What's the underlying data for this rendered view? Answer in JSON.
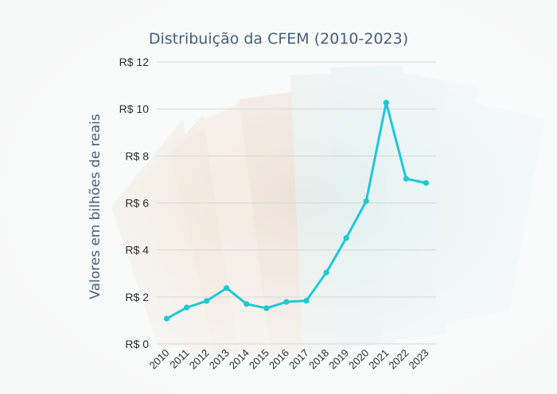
{
  "chart_data": {
    "type": "line",
    "title": "Distribuição da CFEM (2010-2023)",
    "xlabel": "",
    "ylabel": "Valores em bilhões de reais",
    "categories": [
      "2010",
      "2011",
      "2012",
      "2013",
      "2014",
      "2015",
      "2016",
      "2017",
      "2018",
      "2019",
      "2020",
      "2021",
      "2022",
      "2023"
    ],
    "series": [
      {
        "values": [
          1.08,
          1.55,
          1.83,
          2.38,
          1.7,
          1.52,
          1.79,
          1.84,
          3.04,
          4.51,
          6.08,
          10.27,
          7.03,
          6.85
        ]
      }
    ],
    "ylim": [
      0,
      12
    ],
    "y_ticks": [
      0,
      2,
      4,
      6,
      8,
      10,
      12
    ],
    "y_tick_labels": [
      "R$ 0",
      "R$ 2",
      "R$ 4",
      "R$ 6",
      "R$ 8",
      "R$ 10",
      "R$ 12"
    ],
    "grid": true,
    "line_color": "#1ec8d4",
    "grid_color": "#d9d9d9"
  }
}
